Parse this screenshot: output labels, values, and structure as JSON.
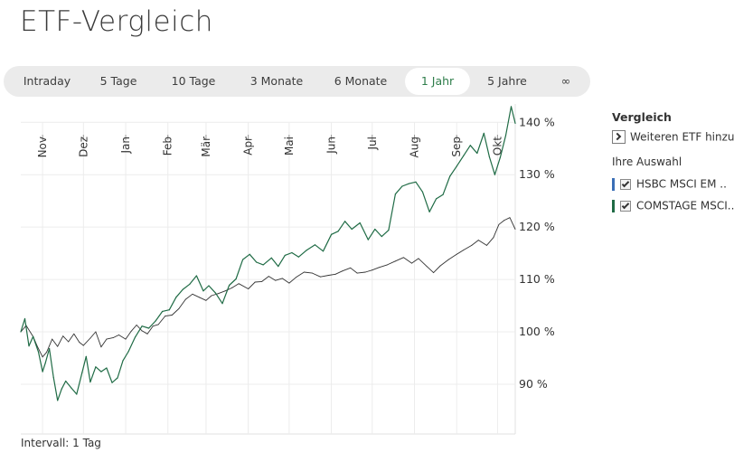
{
  "page": {
    "title": "ETF-Vergleich"
  },
  "range_tabs": [
    {
      "label": "Intraday",
      "active": false
    },
    {
      "label": "5 Tage",
      "active": false
    },
    {
      "label": "10 Tage",
      "active": false
    },
    {
      "label": "3 Monate",
      "active": false
    },
    {
      "label": "6 Monate",
      "active": false
    },
    {
      "label": "1 Jahr",
      "active": true
    },
    {
      "label": "5 Jahre",
      "active": false
    },
    {
      "label": "∞",
      "active": false
    }
  ],
  "interval": {
    "label": "Intervall: 1 Tag"
  },
  "side_panel": {
    "title": "Vergleich",
    "add_label": "Weiteren ETF hinzufügen",
    "add_icon": "chevron-right-icon",
    "selection_label": "Ihre Auswahl",
    "items": [
      {
        "name": "HSBC MSCI EM ..",
        "color": "#3b6fb6",
        "checked": true
      },
      {
        "name": "COMSTAGE MSCI..",
        "color": "#1f6b45",
        "checked": true
      }
    ]
  },
  "chart_data": {
    "type": "line",
    "x_type": "date",
    "x_range": [
      "2017-10-16",
      "2018-10-14"
    ],
    "x_tick_labels": [
      {
        "label": "Nov",
        "date": "2017-11-01"
      },
      {
        "label": "Dez",
        "date": "2017-12-01"
      },
      {
        "label": "Jan",
        "date": "2018-01-01"
      },
      {
        "label": "Feb",
        "date": "2018-02-01"
      },
      {
        "label": "Mär",
        "date": "2018-03-01"
      },
      {
        "label": "Apr",
        "date": "2018-04-01"
      },
      {
        "label": "Mai",
        "date": "2018-05-01"
      },
      {
        "label": "Jun",
        "date": "2018-06-01"
      },
      {
        "label": "Jul",
        "date": "2018-07-01"
      },
      {
        "label": "Aug",
        "date": "2018-08-01"
      },
      {
        "label": "Sep",
        "date": "2018-09-01"
      },
      {
        "label": "Okt",
        "date": "2018-10-01"
      }
    ],
    "y_ticks": [
      {
        "label": "140 %",
        "value": 140
      },
      {
        "label": "130 %",
        "value": 130
      },
      {
        "label": "120 %",
        "value": 120
      },
      {
        "label": "110 %",
        "value": 110
      },
      {
        "label": "100 %",
        "value": 100
      },
      {
        "label": "90 %",
        "value": 90
      }
    ],
    "ylim": [
      80.5,
      143.5
    ],
    "grid": true,
    "series": [
      {
        "name": "HSBC MSCI EM ..",
        "color": "#333333",
        "points": [
          [
            "2017-10-16",
            100.0
          ],
          [
            "2017-10-20",
            101.2
          ],
          [
            "2017-10-25",
            99.1
          ],
          [
            "2017-10-28",
            97.3
          ],
          [
            "2017-11-01",
            95.2
          ],
          [
            "2017-11-04",
            96.1
          ],
          [
            "2017-11-08",
            98.6
          ],
          [
            "2017-11-12",
            97.2
          ],
          [
            "2017-11-16",
            99.2
          ],
          [
            "2017-11-20",
            98.1
          ],
          [
            "2017-11-24",
            99.6
          ],
          [
            "2017-11-28",
            98.0
          ],
          [
            "2017-12-01",
            97.4
          ],
          [
            "2017-12-06",
            98.8
          ],
          [
            "2017-12-10",
            100.0
          ],
          [
            "2017-12-14",
            97.1
          ],
          [
            "2017-12-18",
            98.6
          ],
          [
            "2017-12-23",
            98.9
          ],
          [
            "2017-12-27",
            99.4
          ],
          [
            "2018-01-01",
            98.6
          ],
          [
            "2018-01-05",
            100.1
          ],
          [
            "2018-01-09",
            101.3
          ],
          [
            "2018-01-13",
            100.2
          ],
          [
            "2018-01-17",
            99.6
          ],
          [
            "2018-01-21",
            101.1
          ],
          [
            "2018-01-25",
            101.4
          ],
          [
            "2018-01-30",
            103.0
          ],
          [
            "2018-02-04",
            103.2
          ],
          [
            "2018-02-09",
            104.4
          ],
          [
            "2018-02-14",
            106.2
          ],
          [
            "2018-02-19",
            107.2
          ],
          [
            "2018-02-24",
            106.6
          ],
          [
            "2018-03-01",
            106.0
          ],
          [
            "2018-03-05",
            106.9
          ],
          [
            "2018-03-10",
            107.3
          ],
          [
            "2018-03-15",
            107.8
          ],
          [
            "2018-03-20",
            108.4
          ],
          [
            "2018-03-25",
            109.2
          ],
          [
            "2018-04-01",
            108.2
          ],
          [
            "2018-04-06",
            109.5
          ],
          [
            "2018-04-11",
            109.6
          ],
          [
            "2018-04-16",
            110.6
          ],
          [
            "2018-04-21",
            109.8
          ],
          [
            "2018-04-26",
            110.2
          ],
          [
            "2018-05-01",
            109.3
          ],
          [
            "2018-05-06",
            110.4
          ],
          [
            "2018-05-12",
            111.4
          ],
          [
            "2018-05-18",
            111.2
          ],
          [
            "2018-05-24",
            110.5
          ],
          [
            "2018-05-30",
            110.8
          ],
          [
            "2018-06-04",
            111.0
          ],
          [
            "2018-06-09",
            111.6
          ],
          [
            "2018-06-15",
            112.2
          ],
          [
            "2018-06-20",
            111.2
          ],
          [
            "2018-06-26",
            111.4
          ],
          [
            "2018-07-01",
            111.8
          ],
          [
            "2018-07-06",
            112.3
          ],
          [
            "2018-07-12",
            112.8
          ],
          [
            "2018-07-18",
            113.5
          ],
          [
            "2018-07-24",
            114.2
          ],
          [
            "2018-07-30",
            113.1
          ],
          [
            "2018-08-04",
            114.0
          ],
          [
            "2018-08-10",
            112.5
          ],
          [
            "2018-08-15",
            111.3
          ],
          [
            "2018-08-20",
            112.6
          ],
          [
            "2018-08-26",
            113.8
          ],
          [
            "2018-09-01",
            114.8
          ],
          [
            "2018-09-06",
            115.6
          ],
          [
            "2018-09-12",
            116.5
          ],
          [
            "2018-09-17",
            117.5
          ],
          [
            "2018-09-23",
            116.5
          ],
          [
            "2018-09-28",
            118.0
          ],
          [
            "2018-10-02",
            120.5
          ],
          [
            "2018-10-06",
            121.3
          ],
          [
            "2018-10-10",
            121.8
          ],
          [
            "2018-10-14",
            119.6
          ]
        ]
      },
      {
        "name": "COMSTAGE MSCI..",
        "color": "#1f6b45",
        "points": [
          [
            "2017-10-16",
            100.0
          ],
          [
            "2017-10-19",
            102.5
          ],
          [
            "2017-10-22",
            97.3
          ],
          [
            "2017-10-25",
            99.1
          ],
          [
            "2017-10-29",
            96.1
          ],
          [
            "2017-11-01",
            92.4
          ],
          [
            "2017-11-03",
            94.0
          ],
          [
            "2017-11-06",
            96.8
          ],
          [
            "2017-11-09",
            91.3
          ],
          [
            "2017-11-12",
            86.9
          ],
          [
            "2017-11-15",
            89.1
          ],
          [
            "2017-11-18",
            90.6
          ],
          [
            "2017-11-22",
            89.3
          ],
          [
            "2017-11-26",
            88.1
          ],
          [
            "2017-11-30",
            92.2
          ],
          [
            "2017-12-03",
            95.3
          ],
          [
            "2017-12-06",
            90.4
          ],
          [
            "2017-12-10",
            93.3
          ],
          [
            "2017-12-14",
            92.4
          ],
          [
            "2017-12-18",
            93.1
          ],
          [
            "2017-12-22",
            90.3
          ],
          [
            "2017-12-26",
            91.2
          ],
          [
            "2017-12-30",
            94.5
          ],
          [
            "2018-01-03",
            96.2
          ],
          [
            "2018-01-08",
            99.0
          ],
          [
            "2018-01-13",
            101.1
          ],
          [
            "2018-01-18",
            100.7
          ],
          [
            "2018-01-23",
            102.1
          ],
          [
            "2018-01-28",
            103.9
          ],
          [
            "2018-02-02",
            104.2
          ],
          [
            "2018-02-07",
            106.6
          ],
          [
            "2018-02-12",
            108.1
          ],
          [
            "2018-02-17",
            109.1
          ],
          [
            "2018-02-22",
            110.7
          ],
          [
            "2018-02-27",
            107.8
          ],
          [
            "2018-03-03",
            108.8
          ],
          [
            "2018-03-08",
            107.4
          ],
          [
            "2018-03-13",
            105.4
          ],
          [
            "2018-03-18",
            108.9
          ],
          [
            "2018-03-23",
            110.1
          ],
          [
            "2018-03-28",
            113.8
          ],
          [
            "2018-04-02",
            114.8
          ],
          [
            "2018-04-07",
            113.3
          ],
          [
            "2018-04-12",
            112.8
          ],
          [
            "2018-04-18",
            114.1
          ],
          [
            "2018-04-23",
            112.5
          ],
          [
            "2018-04-28",
            114.6
          ],
          [
            "2018-05-03",
            115.1
          ],
          [
            "2018-05-08",
            114.3
          ],
          [
            "2018-05-14",
            115.6
          ],
          [
            "2018-05-20",
            116.6
          ],
          [
            "2018-05-26",
            115.4
          ],
          [
            "2018-06-01",
            118.6
          ],
          [
            "2018-06-06",
            119.2
          ],
          [
            "2018-06-11",
            121.1
          ],
          [
            "2018-06-16",
            119.6
          ],
          [
            "2018-06-22",
            120.8
          ],
          [
            "2018-06-28",
            117.6
          ],
          [
            "2018-07-03",
            119.6
          ],
          [
            "2018-07-08",
            118.2
          ],
          [
            "2018-07-13",
            119.4
          ],
          [
            "2018-07-18",
            126.3
          ],
          [
            "2018-07-23",
            127.8
          ],
          [
            "2018-07-28",
            128.3
          ],
          [
            "2018-08-02",
            128.6
          ],
          [
            "2018-08-07",
            126.7
          ],
          [
            "2018-08-12",
            122.9
          ],
          [
            "2018-08-17",
            125.4
          ],
          [
            "2018-08-22",
            126.2
          ],
          [
            "2018-08-27",
            129.7
          ],
          [
            "2018-09-01",
            131.6
          ],
          [
            "2018-09-06",
            133.6
          ],
          [
            "2018-09-11",
            135.6
          ],
          [
            "2018-09-16",
            134.1
          ],
          [
            "2018-09-21",
            137.9
          ],
          [
            "2018-09-25",
            133.4
          ],
          [
            "2018-09-29",
            130.0
          ],
          [
            "2018-10-03",
            133.3
          ],
          [
            "2018-10-07",
            137.5
          ],
          [
            "2018-10-11",
            143.0
          ],
          [
            "2018-10-14",
            139.8
          ]
        ]
      }
    ]
  }
}
